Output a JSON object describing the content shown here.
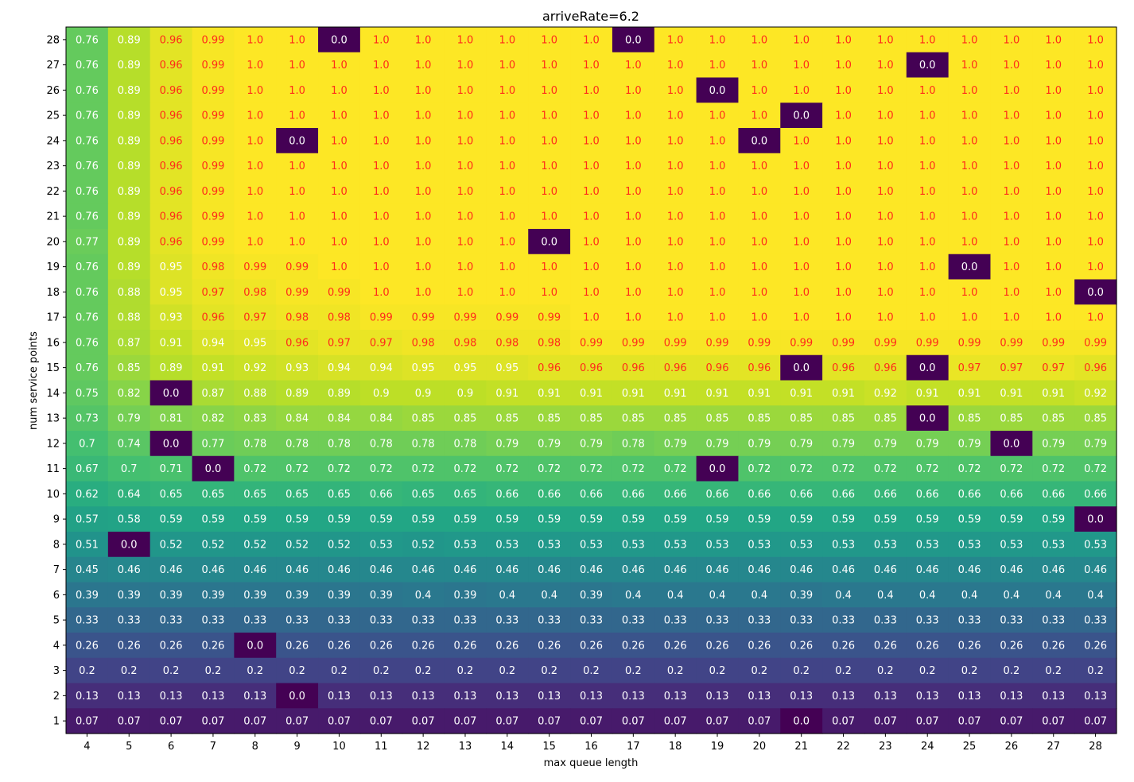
{
  "chart_data": {
    "type": "heatmap",
    "title": "arriveRate=6.2",
    "xlabel": "max queue length",
    "ylabel": "num service points",
    "x": [
      4,
      5,
      6,
      7,
      8,
      9,
      10,
      11,
      12,
      13,
      14,
      15,
      16,
      17,
      18,
      19,
      20,
      21,
      22,
      23,
      24,
      25,
      26,
      27,
      28
    ],
    "y": [
      28,
      27,
      26,
      25,
      24,
      23,
      22,
      21,
      20,
      19,
      18,
      17,
      16,
      15,
      14,
      13,
      12,
      11,
      10,
      9,
      8,
      7,
      6,
      5,
      4,
      3,
      2,
      1
    ],
    "x_tick_labels": [
      "4",
      "5",
      "6",
      "7",
      "8",
      "9",
      "10",
      "11",
      "12",
      "13",
      "14",
      "15",
      "16",
      "17",
      "18",
      "19",
      "20",
      "21",
      "22",
      "23",
      "24",
      "25",
      "26",
      "27",
      "28"
    ],
    "y_tick_labels": [
      "28",
      "27",
      "26",
      "25",
      "24",
      "23",
      "22",
      "21",
      "20",
      "19",
      "18",
      "17",
      "16",
      "15",
      "14",
      "13",
      "12",
      "11",
      "10",
      "9",
      "8",
      "7",
      "6",
      "5",
      "4",
      "3",
      "2",
      "1"
    ],
    "colormap": "viridis",
    "value_range": [
      0,
      1
    ],
    "label_color_rule": "red text when value > 0.95, else white",
    "values": [
      [
        "0.76",
        "0.89",
        "0.96",
        "0.99",
        "1.0",
        "1.0",
        "0.0",
        "1.0",
        "1.0",
        "1.0",
        "1.0",
        "1.0",
        "1.0",
        "0.0",
        "1.0",
        "1.0",
        "1.0",
        "1.0",
        "1.0",
        "1.0",
        "1.0",
        "1.0",
        "1.0",
        "1.0",
        "1.0"
      ],
      [
        "0.76",
        "0.89",
        "0.96",
        "0.99",
        "1.0",
        "1.0",
        "1.0",
        "1.0",
        "1.0",
        "1.0",
        "1.0",
        "1.0",
        "1.0",
        "1.0",
        "1.0",
        "1.0",
        "1.0",
        "1.0",
        "1.0",
        "1.0",
        "0.0",
        "1.0",
        "1.0",
        "1.0",
        "1.0"
      ],
      [
        "0.76",
        "0.89",
        "0.96",
        "0.99",
        "1.0",
        "1.0",
        "1.0",
        "1.0",
        "1.0",
        "1.0",
        "1.0",
        "1.0",
        "1.0",
        "1.0",
        "1.0",
        "0.0",
        "1.0",
        "1.0",
        "1.0",
        "1.0",
        "1.0",
        "1.0",
        "1.0",
        "1.0",
        "1.0"
      ],
      [
        "0.76",
        "0.89",
        "0.96",
        "0.99",
        "1.0",
        "1.0",
        "1.0",
        "1.0",
        "1.0",
        "1.0",
        "1.0",
        "1.0",
        "1.0",
        "1.0",
        "1.0",
        "1.0",
        "1.0",
        "0.0",
        "1.0",
        "1.0",
        "1.0",
        "1.0",
        "1.0",
        "1.0",
        "1.0"
      ],
      [
        "0.76",
        "0.89",
        "0.96",
        "0.99",
        "1.0",
        "0.0",
        "1.0",
        "1.0",
        "1.0",
        "1.0",
        "1.0",
        "1.0",
        "1.0",
        "1.0",
        "1.0",
        "1.0",
        "0.0",
        "1.0",
        "1.0",
        "1.0",
        "1.0",
        "1.0",
        "1.0",
        "1.0",
        "1.0"
      ],
      [
        "0.76",
        "0.89",
        "0.96",
        "0.99",
        "1.0",
        "1.0",
        "1.0",
        "1.0",
        "1.0",
        "1.0",
        "1.0",
        "1.0",
        "1.0",
        "1.0",
        "1.0",
        "1.0",
        "1.0",
        "1.0",
        "1.0",
        "1.0",
        "1.0",
        "1.0",
        "1.0",
        "1.0",
        "1.0"
      ],
      [
        "0.76",
        "0.89",
        "0.96",
        "0.99",
        "1.0",
        "1.0",
        "1.0",
        "1.0",
        "1.0",
        "1.0",
        "1.0",
        "1.0",
        "1.0",
        "1.0",
        "1.0",
        "1.0",
        "1.0",
        "1.0",
        "1.0",
        "1.0",
        "1.0",
        "1.0",
        "1.0",
        "1.0",
        "1.0"
      ],
      [
        "0.76",
        "0.89",
        "0.96",
        "0.99",
        "1.0",
        "1.0",
        "1.0",
        "1.0",
        "1.0",
        "1.0",
        "1.0",
        "1.0",
        "1.0",
        "1.0",
        "1.0",
        "1.0",
        "1.0",
        "1.0",
        "1.0",
        "1.0",
        "1.0",
        "1.0",
        "1.0",
        "1.0",
        "1.0"
      ],
      [
        "0.77",
        "0.89",
        "0.96",
        "0.99",
        "1.0",
        "1.0",
        "1.0",
        "1.0",
        "1.0",
        "1.0",
        "1.0",
        "0.0",
        "1.0",
        "1.0",
        "1.0",
        "1.0",
        "1.0",
        "1.0",
        "1.0",
        "1.0",
        "1.0",
        "1.0",
        "1.0",
        "1.0",
        "1.0"
      ],
      [
        "0.76",
        "0.89",
        "0.95",
        "0.98",
        "0.99",
        "0.99",
        "1.0",
        "1.0",
        "1.0",
        "1.0",
        "1.0",
        "1.0",
        "1.0",
        "1.0",
        "1.0",
        "1.0",
        "1.0",
        "1.0",
        "1.0",
        "1.0",
        "1.0",
        "0.0",
        "1.0",
        "1.0",
        "1.0"
      ],
      [
        "0.76",
        "0.88",
        "0.95",
        "0.97",
        "0.98",
        "0.99",
        "0.99",
        "1.0",
        "1.0",
        "1.0",
        "1.0",
        "1.0",
        "1.0",
        "1.0",
        "1.0",
        "1.0",
        "1.0",
        "1.0",
        "1.0",
        "1.0",
        "1.0",
        "1.0",
        "1.0",
        "1.0",
        "0.0"
      ],
      [
        "0.76",
        "0.88",
        "0.93",
        "0.96",
        "0.97",
        "0.98",
        "0.98",
        "0.99",
        "0.99",
        "0.99",
        "0.99",
        "0.99",
        "1.0",
        "1.0",
        "1.0",
        "1.0",
        "1.0",
        "1.0",
        "1.0",
        "1.0",
        "1.0",
        "1.0",
        "1.0",
        "1.0",
        "1.0"
      ],
      [
        "0.76",
        "0.87",
        "0.91",
        "0.94",
        "0.95",
        "0.96",
        "0.97",
        "0.97",
        "0.98",
        "0.98",
        "0.98",
        "0.98",
        "0.99",
        "0.99",
        "0.99",
        "0.99",
        "0.99",
        "0.99",
        "0.99",
        "0.99",
        "0.99",
        "0.99",
        "0.99",
        "0.99",
        "0.99"
      ],
      [
        "0.76",
        "0.85",
        "0.89",
        "0.91",
        "0.92",
        "0.93",
        "0.94",
        "0.94",
        "0.95",
        "0.95",
        "0.95",
        "0.96",
        "0.96",
        "0.96",
        "0.96",
        "0.96",
        "0.96",
        "0.0",
        "0.96",
        "0.96",
        "0.0",
        "0.97",
        "0.97",
        "0.97",
        "0.96"
      ],
      [
        "0.75",
        "0.82",
        "0.0",
        "0.87",
        "0.88",
        "0.89",
        "0.89",
        "0.9",
        "0.9",
        "0.9",
        "0.91",
        "0.91",
        "0.91",
        "0.91",
        "0.91",
        "0.91",
        "0.91",
        "0.91",
        "0.91",
        "0.92",
        "0.91",
        "0.91",
        "0.91",
        "0.91",
        "0.92"
      ],
      [
        "0.73",
        "0.79",
        "0.81",
        "0.82",
        "0.83",
        "0.84",
        "0.84",
        "0.84",
        "0.85",
        "0.85",
        "0.85",
        "0.85",
        "0.85",
        "0.85",
        "0.85",
        "0.85",
        "0.85",
        "0.85",
        "0.85",
        "0.85",
        "0.0",
        "0.85",
        "0.85",
        "0.85",
        "0.85"
      ],
      [
        "0.7",
        "0.74",
        "0.0",
        "0.77",
        "0.78",
        "0.78",
        "0.78",
        "0.78",
        "0.78",
        "0.78",
        "0.79",
        "0.79",
        "0.79",
        "0.78",
        "0.79",
        "0.79",
        "0.79",
        "0.79",
        "0.79",
        "0.79",
        "0.79",
        "0.79",
        "0.0",
        "0.79",
        "0.79"
      ],
      [
        "0.67",
        "0.7",
        "0.71",
        "0.0",
        "0.72",
        "0.72",
        "0.72",
        "0.72",
        "0.72",
        "0.72",
        "0.72",
        "0.72",
        "0.72",
        "0.72",
        "0.72",
        "0.0",
        "0.72",
        "0.72",
        "0.72",
        "0.72",
        "0.72",
        "0.72",
        "0.72",
        "0.72",
        "0.72"
      ],
      [
        "0.62",
        "0.64",
        "0.65",
        "0.65",
        "0.65",
        "0.65",
        "0.65",
        "0.66",
        "0.65",
        "0.65",
        "0.66",
        "0.66",
        "0.66",
        "0.66",
        "0.66",
        "0.66",
        "0.66",
        "0.66",
        "0.66",
        "0.66",
        "0.66",
        "0.66",
        "0.66",
        "0.66",
        "0.66"
      ],
      [
        "0.57",
        "0.58",
        "0.59",
        "0.59",
        "0.59",
        "0.59",
        "0.59",
        "0.59",
        "0.59",
        "0.59",
        "0.59",
        "0.59",
        "0.59",
        "0.59",
        "0.59",
        "0.59",
        "0.59",
        "0.59",
        "0.59",
        "0.59",
        "0.59",
        "0.59",
        "0.59",
        "0.59",
        "0.0"
      ],
      [
        "0.51",
        "0.0",
        "0.52",
        "0.52",
        "0.52",
        "0.52",
        "0.52",
        "0.53",
        "0.52",
        "0.53",
        "0.53",
        "0.53",
        "0.53",
        "0.53",
        "0.53",
        "0.53",
        "0.53",
        "0.53",
        "0.53",
        "0.53",
        "0.53",
        "0.53",
        "0.53",
        "0.53",
        "0.53"
      ],
      [
        "0.45",
        "0.46",
        "0.46",
        "0.46",
        "0.46",
        "0.46",
        "0.46",
        "0.46",
        "0.46",
        "0.46",
        "0.46",
        "0.46",
        "0.46",
        "0.46",
        "0.46",
        "0.46",
        "0.46",
        "0.46",
        "0.46",
        "0.46",
        "0.46",
        "0.46",
        "0.46",
        "0.46",
        "0.46"
      ],
      [
        "0.39",
        "0.39",
        "0.39",
        "0.39",
        "0.39",
        "0.39",
        "0.39",
        "0.39",
        "0.4",
        "0.39",
        "0.4",
        "0.4",
        "0.39",
        "0.4",
        "0.4",
        "0.4",
        "0.4",
        "0.39",
        "0.4",
        "0.4",
        "0.4",
        "0.4",
        "0.4",
        "0.4",
        "0.4"
      ],
      [
        "0.33",
        "0.33",
        "0.33",
        "0.33",
        "0.33",
        "0.33",
        "0.33",
        "0.33",
        "0.33",
        "0.33",
        "0.33",
        "0.33",
        "0.33",
        "0.33",
        "0.33",
        "0.33",
        "0.33",
        "0.33",
        "0.33",
        "0.33",
        "0.33",
        "0.33",
        "0.33",
        "0.33",
        "0.33"
      ],
      [
        "0.26",
        "0.26",
        "0.26",
        "0.26",
        "0.0",
        "0.26",
        "0.26",
        "0.26",
        "0.26",
        "0.26",
        "0.26",
        "0.26",
        "0.26",
        "0.26",
        "0.26",
        "0.26",
        "0.26",
        "0.26",
        "0.26",
        "0.26",
        "0.26",
        "0.26",
        "0.26",
        "0.26",
        "0.26"
      ],
      [
        "0.2",
        "0.2",
        "0.2",
        "0.2",
        "0.2",
        "0.2",
        "0.2",
        "0.2",
        "0.2",
        "0.2",
        "0.2",
        "0.2",
        "0.2",
        "0.2",
        "0.2",
        "0.2",
        "0.2",
        "0.2",
        "0.2",
        "0.2",
        "0.2",
        "0.2",
        "0.2",
        "0.2",
        "0.2"
      ],
      [
        "0.13",
        "0.13",
        "0.13",
        "0.13",
        "0.13",
        "0.0",
        "0.13",
        "0.13",
        "0.13",
        "0.13",
        "0.13",
        "0.13",
        "0.13",
        "0.13",
        "0.13",
        "0.13",
        "0.13",
        "0.13",
        "0.13",
        "0.13",
        "0.13",
        "0.13",
        "0.13",
        "0.13",
        "0.13"
      ],
      [
        "0.07",
        "0.07",
        "0.07",
        "0.07",
        "0.07",
        "0.07",
        "0.07",
        "0.07",
        "0.07",
        "0.07",
        "0.07",
        "0.07",
        "0.07",
        "0.07",
        "0.07",
        "0.07",
        "0.07",
        "0.0",
        "0.07",
        "0.07",
        "0.07",
        "0.07",
        "0.07",
        "0.07",
        "0.07"
      ]
    ]
  }
}
